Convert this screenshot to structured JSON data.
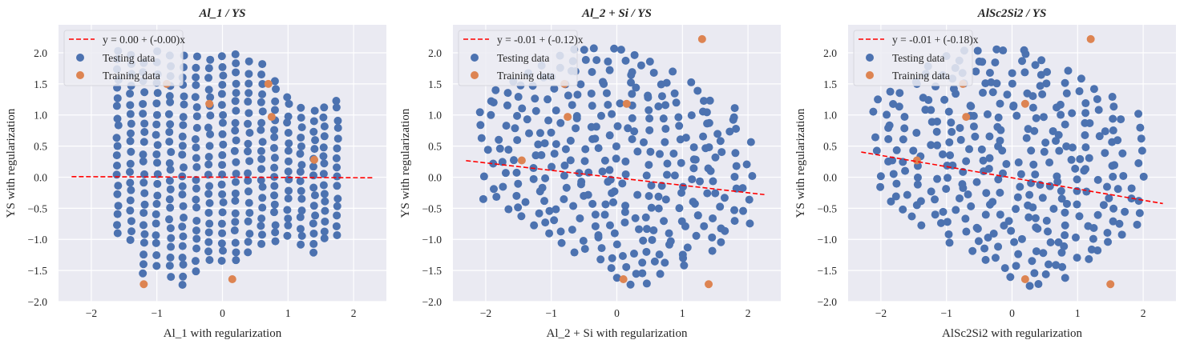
{
  "chart_data": [
    {
      "type": "scatter",
      "title": "Al_1 / YS",
      "xlabel": "Al_1 with regularization",
      "ylabel": "YS with regularization",
      "xlim": [
        -2.5,
        2.5
      ],
      "ylim": [
        -2.0,
        2.45
      ],
      "xticks": [
        -2,
        -1,
        0,
        1,
        2
      ],
      "yticks": [
        -2.0,
        -1.5,
        -1.0,
        -0.5,
        0.0,
        0.5,
        1.0,
        1.5,
        2.0
      ],
      "grid": true,
      "legend": "top-left",
      "fit": {
        "label": "y = 0.00 + (-0.00)x",
        "intercept": 0.0,
        "slope": -0.004,
        "x_range": [
          -2.3,
          2.3
        ]
      },
      "testing": {
        "label": "Testing data",
        "columns": [
          {
            "x": -1.6,
            "y_min": -0.9,
            "y_max": 2.05,
            "n": 20
          },
          {
            "x": -1.4,
            "y_min": -1.0,
            "y_max": 1.95,
            "n": 20
          },
          {
            "x": -1.2,
            "y_min": -1.55,
            "y_max": 1.85,
            "n": 22
          },
          {
            "x": -1.0,
            "y_min": -1.4,
            "y_max": 2.0,
            "n": 22
          },
          {
            "x": -0.8,
            "y_min": -1.6,
            "y_max": 1.95,
            "n": 24
          },
          {
            "x": -0.6,
            "y_min": -1.75,
            "y_max": 1.95,
            "n": 24
          },
          {
            "x": -0.4,
            "y_min": -1.5,
            "y_max": 1.95,
            "n": 22
          },
          {
            "x": -0.2,
            "y_min": -1.35,
            "y_max": 1.9,
            "n": 22
          },
          {
            "x": 0.0,
            "y_min": -1.35,
            "y_max": 1.95,
            "n": 22
          },
          {
            "x": 0.2,
            "y_min": -1.35,
            "y_max": 2.0,
            "n": 22
          },
          {
            "x": 0.4,
            "y_min": -1.2,
            "y_max": 1.85,
            "n": 20
          },
          {
            "x": 0.6,
            "y_min": -1.1,
            "y_max": 1.8,
            "n": 20
          },
          {
            "x": 0.8,
            "y_min": -1.05,
            "y_max": 1.55,
            "n": 18
          },
          {
            "x": 1.0,
            "y_min": -0.95,
            "y_max": 1.3,
            "n": 16
          },
          {
            "x": 1.2,
            "y_min": -1.1,
            "y_max": 1.1,
            "n": 16
          },
          {
            "x": 1.4,
            "y_min": -1.2,
            "y_max": 1.05,
            "n": 16
          },
          {
            "x": 1.55,
            "y_min": -1.0,
            "y_max": 1.1,
            "n": 15
          },
          {
            "x": 1.75,
            "y_min": -0.95,
            "y_max": 1.25,
            "n": 15
          }
        ]
      },
      "training": {
        "label": "Training data",
        "points": [
          [
            -1.2,
            -1.72
          ],
          [
            0.15,
            -1.64
          ],
          [
            -0.2,
            1.18
          ],
          [
            0.7,
            1.5
          ],
          [
            0.75,
            0.97
          ],
          [
            1.4,
            0.28
          ],
          [
            -0.85,
            1.5
          ]
        ]
      }
    },
    {
      "type": "scatter",
      "title": "Al_2 + Si / YS",
      "xlabel": "Al_2 + Si with regularization",
      "ylabel": "YS with regularization",
      "xlim": [
        -2.5,
        2.5
      ],
      "ylim": [
        -2.0,
        2.45
      ],
      "xticks": [
        -2,
        -1,
        0,
        1,
        2
      ],
      "yticks": [
        -2.0,
        -1.5,
        -1.0,
        -0.5,
        0.0,
        0.5,
        1.0,
        1.5,
        2.0
      ],
      "grid": true,
      "legend": "top-left",
      "fit": {
        "label": "y = -0.01 + (-0.12)x",
        "intercept": -0.01,
        "slope": -0.12,
        "x_range": [
          -2.3,
          2.25
        ]
      },
      "testing": {
        "label": "Testing data",
        "cloud": {
          "x_min": -1.95,
          "x_max": 1.95,
          "y_min": -1.85,
          "y_max": 2.05
        }
      },
      "training": {
        "label": "Training data",
        "points": [
          [
            -1.45,
            0.27
          ],
          [
            -0.75,
            0.97
          ],
          [
            0.15,
            1.18
          ],
          [
            0.1,
            -1.64
          ],
          [
            1.3,
            2.22
          ],
          [
            1.4,
            -1.72
          ],
          [
            -0.8,
            1.5
          ]
        ]
      }
    },
    {
      "type": "scatter",
      "title": "AlSc2Si2 / YS",
      "xlabel": "AlSc2Si2 with regularization",
      "ylabel": "YS with regularization",
      "xlim": [
        -2.5,
        2.5
      ],
      "ylim": [
        -2.0,
        2.45
      ],
      "xticks": [
        -2,
        -1,
        0,
        1,
        2
      ],
      "yticks": [
        -2.0,
        -1.5,
        -1.0,
        -0.5,
        0.0,
        0.5,
        1.0,
        1.5,
        2.0
      ],
      "grid": true,
      "legend": "top-left",
      "fit": {
        "label": "y = -0.01 + (-0.18)x",
        "intercept": -0.01,
        "slope": -0.18,
        "x_range": [
          -2.3,
          2.3
        ]
      },
      "testing": {
        "label": "Testing data",
        "cloud": {
          "x_min": -1.95,
          "x_max": 1.9,
          "y_min": -1.8,
          "y_max": 2.05
        }
      },
      "training": {
        "label": "Training data",
        "points": [
          [
            -1.45,
            0.27
          ],
          [
            -0.7,
            0.97
          ],
          [
            0.2,
            1.18
          ],
          [
            0.2,
            -1.64
          ],
          [
            1.2,
            2.22
          ],
          [
            1.5,
            -1.72
          ],
          [
            -0.75,
            1.5
          ]
        ]
      }
    }
  ],
  "colors": {
    "testing": "#4c72b0",
    "training": "#dd8452",
    "fit": "#ff0000",
    "axes_bg": "#eaeaf2",
    "grid": "#ffffff",
    "text": "#262626"
  }
}
